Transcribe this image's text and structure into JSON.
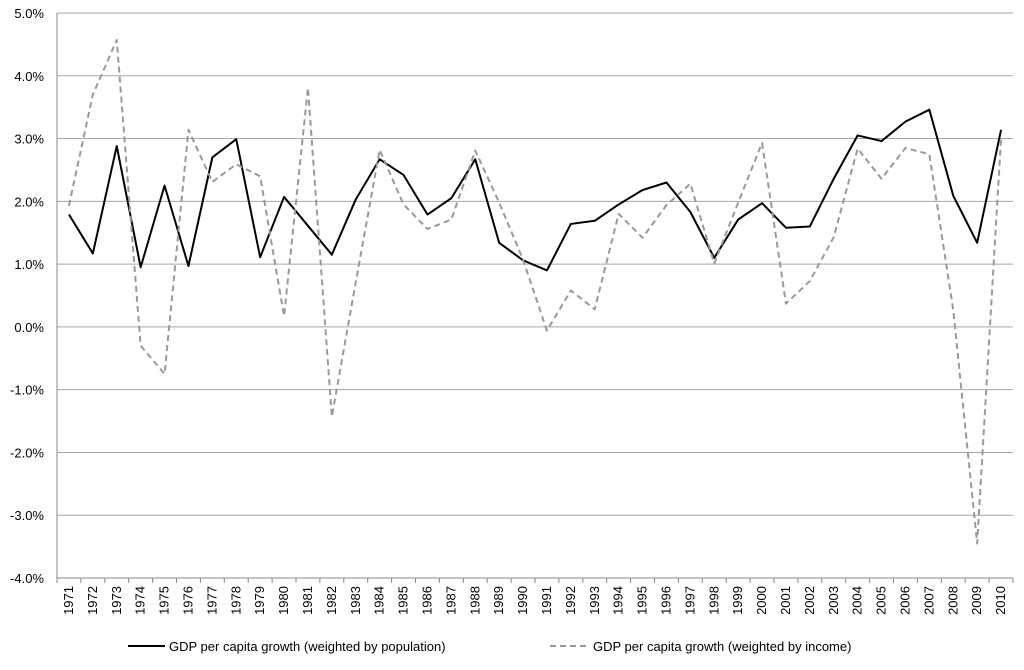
{
  "chart_data": {
    "type": "line",
    "title": "",
    "xlabel": "",
    "ylabel": "",
    "ylim": [
      -0.04,
      0.05
    ],
    "ytick_step": 0.01,
    "y_format": "percent_1dp",
    "grid": "horizontal",
    "legend_position": "bottom",
    "x": [
      "1971",
      "1972",
      "1973",
      "1974",
      "1975",
      "1976",
      "1977",
      "1978",
      "1979",
      "1980",
      "1981",
      "1982",
      "1983",
      "1984",
      "1985",
      "1986",
      "1987",
      "1988",
      "1989",
      "1990",
      "1991",
      "1992",
      "1993",
      "1994",
      "1995",
      "1996",
      "1997",
      "1998",
      "1999",
      "2000",
      "2001",
      "2002",
      "2003",
      "2004",
      "2005",
      "2006",
      "2007",
      "2008",
      "2009",
      "2010"
    ],
    "series": [
      {
        "name": "GDP per capita growth (weighted by population)",
        "color": "#000000",
        "style": "solid",
        "values": [
          0.0179,
          0.0117,
          0.0288,
          0.0095,
          0.0225,
          0.0097,
          0.027,
          0.0299,
          0.0111,
          0.0207,
          0.0161,
          0.0115,
          0.0203,
          0.0267,
          0.0242,
          0.0179,
          0.0205,
          0.0267,
          0.0134,
          0.0106,
          0.009,
          0.0164,
          0.0169,
          0.0195,
          0.0218,
          0.023,
          0.0183,
          0.011,
          0.0171,
          0.0197,
          0.0158,
          0.016,
          0.0236,
          0.0305,
          0.0296,
          0.0327,
          0.0346,
          0.0209,
          0.0134,
          0.0314
        ]
      },
      {
        "name": "GDP per capita growth (weighted by income)",
        "color": "#999999",
        "style": "dashed",
        "values": [
          0.0193,
          0.037,
          0.0457,
          -0.003,
          -0.0075,
          0.0314,
          0.0231,
          0.0259,
          0.024,
          0.0017,
          0.0381,
          -0.0143,
          0.0071,
          0.0282,
          0.0195,
          0.0156,
          0.0171,
          0.0281,
          0.0198,
          0.0107,
          -0.0006,
          0.0058,
          0.0028,
          0.018,
          0.0142,
          0.0194,
          0.0228,
          0.0101,
          0.0198,
          0.0293,
          0.0037,
          0.0073,
          0.0143,
          0.0284,
          0.0236,
          0.0285,
          0.0275,
          0.0027,
          -0.0345,
          0.03
        ]
      }
    ]
  }
}
